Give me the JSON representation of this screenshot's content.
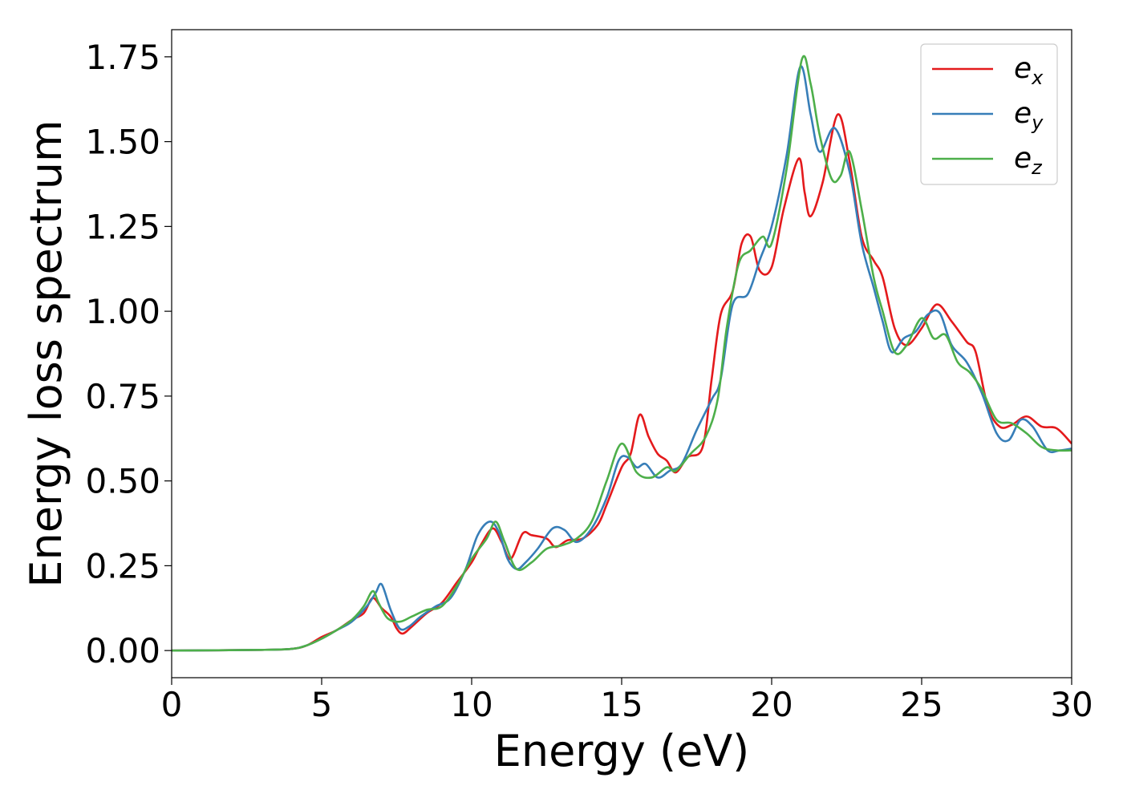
{
  "chart_data": {
    "type": "line",
    "xlabel": "Energy (eV)",
    "ylabel": "Energy loss spectrum",
    "xlim": [
      0,
      30
    ],
    "ylim": [
      -0.08,
      1.83
    ],
    "xticks": [
      0,
      5,
      10,
      15,
      20,
      25,
      30
    ],
    "xtick_labels": [
      "0",
      "5",
      "10",
      "15",
      "20",
      "25",
      "30"
    ],
    "yticks": [
      0,
      0.25,
      0.5,
      0.75,
      1.0,
      1.25,
      1.5,
      1.75
    ],
    "ytick_labels": [
      "0.00",
      "0.25",
      "0.50",
      "0.75",
      "1.00",
      "1.25",
      "1.50",
      "1.75"
    ],
    "grid": false,
    "legend_position": "top-right",
    "series": [
      {
        "name": "e_x",
        "base": "e",
        "sub": "x",
        "color": "#e41a1c",
        "points": [
          [
            0,
            0
          ],
          [
            3,
            0.002
          ],
          [
            4,
            0.005
          ],
          [
            4.5,
            0.015
          ],
          [
            5,
            0.04
          ],
          [
            5.5,
            0.06
          ],
          [
            6,
            0.09
          ],
          [
            6.4,
            0.11
          ],
          [
            6.7,
            0.155
          ],
          [
            7.0,
            0.125
          ],
          [
            7.3,
            0.1
          ],
          [
            7.5,
            0.065
          ],
          [
            7.7,
            0.05
          ],
          [
            8.0,
            0.07
          ],
          [
            8.5,
            0.11
          ],
          [
            9.0,
            0.14
          ],
          [
            9.5,
            0.2
          ],
          [
            10.0,
            0.26
          ],
          [
            10.3,
            0.31
          ],
          [
            10.7,
            0.36
          ],
          [
            11.0,
            0.32
          ],
          [
            11.3,
            0.27
          ],
          [
            11.7,
            0.345
          ],
          [
            12.0,
            0.34
          ],
          [
            12.5,
            0.33
          ],
          [
            12.8,
            0.305
          ],
          [
            13.2,
            0.325
          ],
          [
            13.7,
            0.33
          ],
          [
            14.2,
            0.37
          ],
          [
            14.5,
            0.43
          ],
          [
            15.0,
            0.54
          ],
          [
            15.3,
            0.58
          ],
          [
            15.6,
            0.695
          ],
          [
            15.9,
            0.63
          ],
          [
            16.2,
            0.58
          ],
          [
            16.5,
            0.56
          ],
          [
            16.8,
            0.525
          ],
          [
            17.2,
            0.57
          ],
          [
            17.7,
            0.6
          ],
          [
            18.0,
            0.8
          ],
          [
            18.3,
            0.99
          ],
          [
            18.7,
            1.06
          ],
          [
            19.0,
            1.2
          ],
          [
            19.3,
            1.22
          ],
          [
            19.6,
            1.12
          ],
          [
            20.0,
            1.13
          ],
          [
            20.4,
            1.3
          ],
          [
            20.9,
            1.45
          ],
          [
            21.1,
            1.35
          ],
          [
            21.3,
            1.28
          ],
          [
            21.7,
            1.38
          ],
          [
            22.2,
            1.58
          ],
          [
            22.6,
            1.44
          ],
          [
            23.0,
            1.22
          ],
          [
            23.4,
            1.15
          ],
          [
            23.7,
            1.1
          ],
          [
            24.1,
            0.95
          ],
          [
            24.5,
            0.9
          ],
          [
            25.0,
            0.95
          ],
          [
            25.5,
            1.02
          ],
          [
            26.0,
            0.97
          ],
          [
            26.5,
            0.91
          ],
          [
            26.8,
            0.88
          ],
          [
            27.2,
            0.72
          ],
          [
            27.6,
            0.66
          ],
          [
            28.0,
            0.665
          ],
          [
            28.5,
            0.69
          ],
          [
            29.0,
            0.66
          ],
          [
            29.5,
            0.655
          ],
          [
            30.0,
            0.61
          ]
        ]
      },
      {
        "name": "e_y",
        "base": "e",
        "sub": "y",
        "color": "#377eb8",
        "points": [
          [
            0,
            0
          ],
          [
            3,
            0.002
          ],
          [
            4,
            0.005
          ],
          [
            4.5,
            0.015
          ],
          [
            5,
            0.035
          ],
          [
            5.5,
            0.06
          ],
          [
            6,
            0.085
          ],
          [
            6.5,
            0.13
          ],
          [
            6.8,
            0.17
          ],
          [
            7.0,
            0.195
          ],
          [
            7.3,
            0.12
          ],
          [
            7.6,
            0.065
          ],
          [
            7.9,
            0.07
          ],
          [
            8.3,
            0.1
          ],
          [
            8.8,
            0.13
          ],
          [
            9.3,
            0.155
          ],
          [
            9.8,
            0.24
          ],
          [
            10.2,
            0.34
          ],
          [
            10.6,
            0.38
          ],
          [
            10.9,
            0.35
          ],
          [
            11.2,
            0.27
          ],
          [
            11.5,
            0.24
          ],
          [
            11.8,
            0.26
          ],
          [
            12.2,
            0.3
          ],
          [
            12.7,
            0.36
          ],
          [
            13.1,
            0.355
          ],
          [
            13.5,
            0.32
          ],
          [
            14.0,
            0.36
          ],
          [
            14.5,
            0.45
          ],
          [
            14.9,
            0.56
          ],
          [
            15.2,
            0.57
          ],
          [
            15.5,
            0.54
          ],
          [
            15.8,
            0.55
          ],
          [
            16.2,
            0.51
          ],
          [
            16.6,
            0.53
          ],
          [
            17.0,
            0.55
          ],
          [
            17.5,
            0.65
          ],
          [
            18.0,
            0.74
          ],
          [
            18.3,
            0.8
          ],
          [
            18.7,
            1.02
          ],
          [
            19.2,
            1.05
          ],
          [
            19.6,
            1.15
          ],
          [
            20.0,
            1.25
          ],
          [
            20.5,
            1.46
          ],
          [
            20.95,
            1.72
          ],
          [
            21.3,
            1.58
          ],
          [
            21.6,
            1.47
          ],
          [
            22.1,
            1.54
          ],
          [
            22.6,
            1.41
          ],
          [
            23.0,
            1.2
          ],
          [
            23.4,
            1.07
          ],
          [
            23.7,
            0.97
          ],
          [
            24.0,
            0.88
          ],
          [
            24.4,
            0.92
          ],
          [
            24.8,
            0.94
          ],
          [
            25.2,
            0.99
          ],
          [
            25.6,
            0.995
          ],
          [
            26.0,
            0.9
          ],
          [
            26.5,
            0.85
          ],
          [
            27.0,
            0.76
          ],
          [
            27.5,
            0.64
          ],
          [
            27.9,
            0.62
          ],
          [
            28.3,
            0.68
          ],
          [
            28.7,
            0.66
          ],
          [
            29.2,
            0.59
          ],
          [
            29.6,
            0.59
          ],
          [
            30.0,
            0.595
          ]
        ]
      },
      {
        "name": "e_z",
        "base": "e",
        "sub": "z",
        "color": "#4daf4a",
        "points": [
          [
            0,
            0
          ],
          [
            3,
            0.002
          ],
          [
            4,
            0.005
          ],
          [
            4.5,
            0.015
          ],
          [
            5,
            0.035
          ],
          [
            5.5,
            0.06
          ],
          [
            6,
            0.09
          ],
          [
            6.4,
            0.13
          ],
          [
            6.7,
            0.175
          ],
          [
            6.9,
            0.14
          ],
          [
            7.2,
            0.095
          ],
          [
            7.6,
            0.085
          ],
          [
            8.0,
            0.1
          ],
          [
            8.5,
            0.12
          ],
          [
            9.0,
            0.13
          ],
          [
            9.5,
            0.19
          ],
          [
            10.0,
            0.27
          ],
          [
            10.5,
            0.33
          ],
          [
            10.8,
            0.38
          ],
          [
            11.1,
            0.32
          ],
          [
            11.5,
            0.24
          ],
          [
            12.0,
            0.26
          ],
          [
            12.5,
            0.3
          ],
          [
            13.0,
            0.31
          ],
          [
            13.5,
            0.33
          ],
          [
            14.0,
            0.38
          ],
          [
            14.5,
            0.5
          ],
          [
            15.0,
            0.61
          ],
          [
            15.5,
            0.525
          ],
          [
            16.0,
            0.51
          ],
          [
            16.5,
            0.54
          ],
          [
            16.8,
            0.53
          ],
          [
            17.3,
            0.58
          ],
          [
            17.8,
            0.63
          ],
          [
            18.2,
            0.74
          ],
          [
            18.5,
            0.95
          ],
          [
            18.9,
            1.14
          ],
          [
            19.3,
            1.18
          ],
          [
            19.7,
            1.22
          ],
          [
            20.0,
            1.2
          ],
          [
            20.5,
            1.42
          ],
          [
            21.0,
            1.74
          ],
          [
            21.3,
            1.67
          ],
          [
            21.6,
            1.52
          ],
          [
            22.0,
            1.39
          ],
          [
            22.3,
            1.4
          ],
          [
            22.6,
            1.47
          ],
          [
            23.0,
            1.3
          ],
          [
            23.4,
            1.1
          ],
          [
            23.7,
            1.0
          ],
          [
            24.1,
            0.88
          ],
          [
            24.5,
            0.9
          ],
          [
            25.0,
            0.98
          ],
          [
            25.4,
            0.92
          ],
          [
            25.8,
            0.93
          ],
          [
            26.2,
            0.85
          ],
          [
            26.6,
            0.82
          ],
          [
            27.0,
            0.77
          ],
          [
            27.5,
            0.68
          ],
          [
            28.0,
            0.67
          ],
          [
            28.5,
            0.64
          ],
          [
            29.0,
            0.6
          ],
          [
            29.5,
            0.59
          ],
          [
            30.0,
            0.59
          ]
        ]
      }
    ]
  }
}
